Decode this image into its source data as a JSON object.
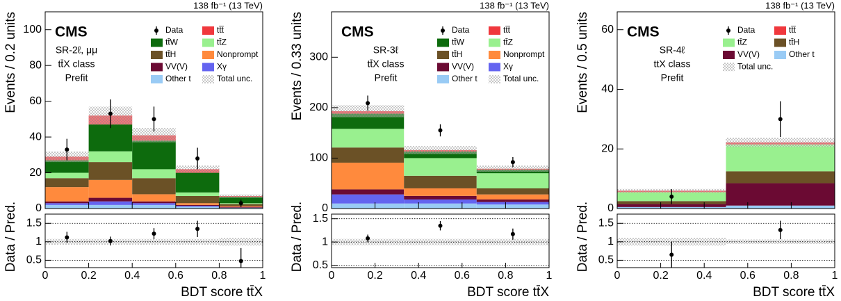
{
  "chart_data": [
    {
      "type": "stacked_histogram",
      "lumi": "138 fb⁻¹ (13 TeV)",
      "experiment": "CMS",
      "region": [
        "SR-2ℓ, μμ",
        "tt̄X class",
        "Prefit"
      ],
      "ylabel": "Events / 0.2 units",
      "xlabel": "BDT score tt̄X",
      "bins": [
        0,
        0.2,
        0.4,
        0.6,
        0.8,
        1
      ],
      "xlim": [
        0,
        1
      ],
      "xticks": [
        0,
        0.2,
        0.4,
        0.6,
        0.8,
        1
      ],
      "ylim": [
        0,
        110
      ],
      "yticks": [
        0,
        20,
        40,
        60,
        80,
        100
      ],
      "series": [
        {
          "name": "tt̄t̄",
          "color": "#f0383d",
          "values": [
            2,
            5,
            3,
            2,
            0.5
          ]
        },
        {
          "name": "tt̄W",
          "color": "#0d6b0d",
          "values": [
            7,
            15,
            16,
            11,
            3.5
          ]
        },
        {
          "name": "tt̄Z",
          "color": "#99f08f",
          "values": [
            3,
            6,
            5,
            2,
            0.5
          ]
        },
        {
          "name": "tt̄H",
          "color": "#6b5126",
          "values": [
            5,
            10,
            9,
            4,
            1
          ]
        },
        {
          "name": "Nonprompt",
          "color": "#ff8a3d",
          "values": [
            8,
            10,
            4,
            1,
            0.5
          ]
        },
        {
          "name": "VV(V)",
          "color": "#6b0a33",
          "values": [
            1,
            2,
            1,
            0.5,
            0.5
          ]
        },
        {
          "name": "Xγ",
          "color": "#6464f0",
          "values": [
            1,
            2,
            1,
            0.5,
            0
          ]
        },
        {
          "name": "Other t",
          "color": "#99cbf5",
          "values": [
            2,
            2,
            2,
            1,
            0.5
          ]
        }
      ],
      "data": {
        "name": "Data",
        "values": [
          33,
          53,
          50,
          28,
          3
        ],
        "errors": [
          6,
          8,
          7,
          6,
          2
        ]
      },
      "total_unc": {
        "name": "Total unc.",
        "values": [
          3,
          5,
          4,
          2,
          1
        ]
      },
      "ratio": {
        "ylabel": "Data / Pred.",
        "values": [
          1.12,
          1.02,
          1.22,
          1.35,
          0.48
        ],
        "errors": [
          0.15,
          0.12,
          0.15,
          0.22,
          0.35
        ],
        "unc": [
          0.08,
          0.08,
          0.08,
          0.08,
          0.1
        ],
        "ylim": [
          0.3,
          1.75
        ],
        "yticks": [
          0.5,
          1,
          1.5
        ],
        "grid": true
      }
    },
    {
      "type": "stacked_histogram",
      "lumi": "138 fb⁻¹ (13 TeV)",
      "experiment": "CMS",
      "region": [
        "SR-3ℓ",
        "tt̄X class",
        "Prefit"
      ],
      "ylabel": "Events / 0.33 units",
      "xlabel": "BDT score tt̄X",
      "bins": [
        0,
        0.333,
        0.667,
        1
      ],
      "xlim": [
        0,
        1
      ],
      "xticks": [
        0,
        0.2,
        0.4,
        0.6,
        0.8,
        1
      ],
      "ylim": [
        0,
        390
      ],
      "yticks": [
        0,
        100,
        200,
        300
      ],
      "series": [
        {
          "name": "tt̄t̄",
          "color": "#f0383d",
          "values": [
            5,
            3,
            2
          ]
        },
        {
          "name": "tt̄W",
          "color": "#0d6b0d",
          "values": [
            30,
            13,
            7
          ]
        },
        {
          "name": "tt̄Z",
          "color": "#99f08f",
          "values": [
            37,
            35,
            30
          ]
        },
        {
          "name": "tt̄H",
          "color": "#6b5126",
          "values": [
            30,
            25,
            12
          ]
        },
        {
          "name": "Nonprompt",
          "color": "#ff8a3d",
          "values": [
            53,
            15,
            10
          ]
        },
        {
          "name": "VV(V)",
          "color": "#6b0a33",
          "values": [
            10,
            7,
            5
          ]
        },
        {
          "name": "Xγ",
          "color": "#6464f0",
          "values": [
            18,
            8,
            5
          ]
        },
        {
          "name": "Other t",
          "color": "#99cbf5",
          "values": [
            10,
            10,
            8
          ]
        }
      ],
      "data": {
        "name": "Data",
        "values": [
          209,
          155,
          92
        ],
        "errors": [
          15,
          12,
          10
        ]
      },
      "total_unc": {
        "name": "Total unc.",
        "values": [
          12,
          8,
          6
        ]
      },
      "ratio": {
        "ylabel": "Data / Pred.",
        "values": [
          1.08,
          1.35,
          1.17
        ],
        "errors": [
          0.08,
          0.1,
          0.12
        ],
        "unc": [
          0.07,
          0.07,
          0.07
        ],
        "ylim": [
          0.45,
          1.6
        ],
        "yticks": [
          0.5,
          1,
          1.5
        ],
        "grid": true
      }
    },
    {
      "type": "stacked_histogram",
      "lumi": "138 fb⁻¹ (13 TeV)",
      "experiment": "CMS",
      "region": [
        "SR-4ℓ",
        "ttX class",
        "Prefit"
      ],
      "ylabel": "Events / 0.5 units",
      "xlabel": "BDT score tt̄X",
      "bins": [
        0,
        0.5,
        1
      ],
      "xlim": [
        0,
        1
      ],
      "xticks": [
        0,
        0.2,
        0.4,
        0.6,
        0.8,
        1
      ],
      "ylim": [
        0,
        66
      ],
      "yticks": [
        0,
        20,
        40,
        60
      ],
      "series": [
        {
          "name": "tt̄t̄",
          "color": "#f0383d",
          "values": [
            0.5,
            0.7
          ]
        },
        {
          "name": "tt̄Z",
          "color": "#99f08f",
          "values": [
            3,
            9
          ]
        },
        {
          "name": "tt̄H",
          "color": "#6b5126",
          "values": [
            1,
            4
          ]
        },
        {
          "name": "VV(V)",
          "color": "#6b0a33",
          "values": [
            1,
            7.5
          ]
        },
        {
          "name": "Other t",
          "color": "#99cbf5",
          "values": [
            0.5,
            1
          ]
        }
      ],
      "data": {
        "name": "Data",
        "values": [
          4,
          30
        ],
        "errors": [
          2.5,
          6
        ]
      },
      "total_unc": {
        "name": "Total unc.",
        "values": [
          0.6,
          1.5
        ]
      },
      "ratio": {
        "ylabel": "Data / Pred.",
        "values": [
          0.65,
          1.32
        ],
        "errors": [
          0.35,
          0.25
        ],
        "unc": [
          0.1,
          0.06
        ],
        "ylim": [
          0.3,
          1.75
        ],
        "yticks": [
          0.5,
          1,
          1.5
        ],
        "grid": true
      }
    }
  ]
}
